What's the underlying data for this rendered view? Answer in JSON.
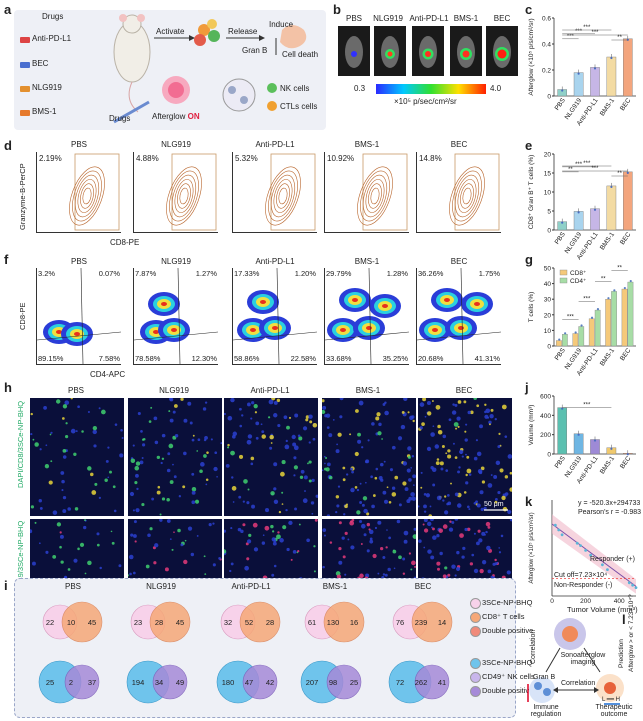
{
  "panels": {
    "a": {
      "label": "a",
      "drugs_title": "Drugs",
      "drug_list": [
        "Anti-PD-L1",
        "BEC",
        "NLG919",
        "BMS-1"
      ],
      "steps": [
        "Activate",
        "Release",
        "Induce"
      ],
      "gran_b": "Gran B",
      "cell_death": "Cell death",
      "drugs_label": "Drugs",
      "afterglow_on": "Afterglow",
      "on_word": "ON",
      "nk_label": "NK cells",
      "ctl_label": "CTLs cells"
    },
    "b": {
      "label": "b",
      "conditions": [
        "PBS",
        "NLG919",
        "Anti-PD-L1",
        "BMS-1",
        "BEC"
      ],
      "scale_min": "0.3",
      "scale_max": "4.0",
      "scale_unit": "×10⁵ p/sec/cm²/sr"
    },
    "d": {
      "label": "d",
      "ylabel": "Granzyme-B-PerCP",
      "xlabel": "CD8-PE",
      "conditions": [
        "PBS",
        "NLG919",
        "Anti-PD-L1",
        "BMS-1",
        "BEC"
      ],
      "percents": [
        "2.19%",
        "4.88%",
        "5.32%",
        "10.92%",
        "14.8%"
      ]
    },
    "f": {
      "label": "f",
      "ylabel": "CD8-PE",
      "xlabel": "CD4-APC",
      "conditions": [
        "PBS",
        "NLG919",
        "Anti-PD-L1",
        "BMS-1",
        "BEC"
      ],
      "quadrants": [
        {
          "tl": "3.2%",
          "tr": "0.07%",
          "bl": "89.15%",
          "br": "7.58%"
        },
        {
          "tl": "7.87%",
          "tr": "1.27%",
          "bl": "78.58%",
          "br": "12.30%"
        },
        {
          "tl": "17.33%",
          "tr": "1.20%",
          "bl": "58.86%",
          "br": "22.58%"
        },
        {
          "tl": "29.79%",
          "tr": "1.28%",
          "bl": "33.68%",
          "br": "35.25%"
        },
        {
          "tl": "36.26%",
          "tr": "1.75%",
          "bl": "20.68%",
          "br": "41.31%"
        }
      ]
    },
    "h": {
      "label": "h",
      "conditions": [
        "PBS",
        "NLG919",
        "Anti-PD-L1",
        "BMS-1",
        "BEC"
      ],
      "row1_label": "DAPI/CD8/3SCe-NP-BHQ",
      "row2_label": "DAPI/CD49/3SCe-NP-BHQ",
      "scale_bar": "50 μm"
    },
    "i": {
      "label": "i",
      "conditions": [
        "PBS",
        "NLG919",
        "Anti-PD-L1",
        "BMS-1",
        "BEC"
      ],
      "row1": [
        {
          "a": "22",
          "ab": "10",
          "b": "45"
        },
        {
          "a": "23",
          "ab": "28",
          "b": "45"
        },
        {
          "a": "32",
          "ab": "52",
          "b": "28"
        },
        {
          "a": "61",
          "ab": "130",
          "b": "16"
        },
        {
          "a": "76",
          "ab": "239",
          "b": "14"
        }
      ],
      "row2": [
        {
          "a": "25",
          "ab": "2",
          "b": "37"
        },
        {
          "a": "194",
          "ab": "34",
          "b": "49"
        },
        {
          "a": "180",
          "ab": "47",
          "b": "42"
        },
        {
          "a": "207",
          "ab": "98",
          "b": "25"
        },
        {
          "a": "72",
          "ab": "262",
          "b": "41"
        }
      ],
      "legend1": [
        "3SCe-NP-BHQ",
        "CD8⁺ T cells",
        "Double positive"
      ],
      "legend2": [
        "3SCe-NP-BHQ",
        "CD49⁺ NK cells",
        "Double positive"
      ]
    },
    "k": {
      "label": "k",
      "equation": "y = -520.3x+294733",
      "pearson": "Pearson's r = -0.983",
      "responder": "Responder (+)",
      "cutoff": "Cut off=7.23×10⁴",
      "nonresponder": "Non-Responder (-)",
      "xlabel": "Tumor Volume (mm³)",
      "ylabel": "Afterglow (×10⁵ p/s/cm²/sr)",
      "xticks": [
        "0",
        "200",
        "400"
      ]
    },
    "l": {
      "label": "l",
      "top": "Sonoafterglow imaging",
      "left": "Immune regulation",
      "right": "Therapeutic outcome",
      "gran_b": "Gran B",
      "corr1": "Correlation",
      "corr2": "Correlation",
      "prediction": "Afterglow > or < 7.23×10⁴?",
      "prediction_word": "Prediction",
      "lh": "L ━━ H"
    }
  },
  "chart_data": [
    {
      "id": "c",
      "type": "bar",
      "categories": [
        "PBS",
        "NLG919",
        "Anti-PD-L1",
        "BMS-1",
        "BEC"
      ],
      "values": [
        0.05,
        0.18,
        0.22,
        0.3,
        0.44
      ],
      "ylabel": "Afterglow (×10⁵ p/s/cm²/sr)",
      "ylim": [
        0,
        0.6
      ],
      "yticks": [
        0,
        0.2,
        0.4,
        0.6
      ],
      "significance": [
        "***",
        "***",
        "***",
        "***",
        "**"
      ],
      "colors": [
        "#8fd0c8",
        "#a9d4ee",
        "#c6b6e6",
        "#f3dba3",
        "#f3a57d"
      ]
    },
    {
      "id": "e",
      "type": "bar",
      "categories": [
        "PBS",
        "NLG919",
        "Anti-PD-L1",
        "BMS-1",
        "BEC"
      ],
      "values": [
        2.2,
        4.9,
        5.6,
        11.6,
        15.3
      ],
      "ylabel": "CD8⁺ Gran B⁺ T cells (%)",
      "ylim": [
        0,
        20
      ],
      "yticks": [
        0,
        5,
        10,
        15,
        20
      ],
      "significance": [
        "**",
        "***",
        "***",
        "***",
        "**"
      ],
      "colors": [
        "#8fd0c8",
        "#a9d4ee",
        "#c6b6e6",
        "#f3dba3",
        "#f3a57d"
      ]
    },
    {
      "id": "g",
      "type": "bar",
      "categories": [
        "PBS",
        "NLG919",
        "Anti-PD-L1",
        "BMS-1",
        "BEC"
      ],
      "series": [
        {
          "name": "CD8⁺",
          "values": [
            3.5,
            8.0,
            17.5,
            30.0,
            36.5
          ]
        },
        {
          "name": "CD4⁺",
          "values": [
            7.5,
            12.5,
            23.0,
            35.0,
            41.0
          ]
        }
      ],
      "ylabel": "T cells (%)",
      "ylim": [
        0,
        50
      ],
      "yticks": [
        0,
        10,
        20,
        30,
        40,
        50
      ],
      "significance": [
        "***",
        "***",
        "**",
        "**"
      ],
      "legend_position": "top-left",
      "colors": [
        "#f5c97a",
        "#a7dda6"
      ]
    },
    {
      "id": "j",
      "type": "bar",
      "categories": [
        "PBS",
        "NLG919",
        "Anti-PD-L1",
        "BMS-1",
        "BEC"
      ],
      "values": [
        480,
        210,
        150,
        65,
        8
      ],
      "ylabel": "Volume (mm³)",
      "ylim": [
        0,
        600
      ],
      "yticks": [
        0,
        200,
        400,
        600
      ],
      "significance": [
        "***"
      ],
      "colors": [
        "#5bc0b0",
        "#6fb6e3",
        "#9e8ad6",
        "#f0c96d",
        "#ee8a5e"
      ]
    },
    {
      "id": "k",
      "type": "scatter",
      "x": [
        20,
        40,
        60,
        150,
        170,
        200,
        230,
        300,
        330,
        460,
        480,
        500
      ],
      "y": [
        2.95,
        2.75,
        2.55,
        2.2,
        2.1,
        1.9,
        1.7,
        1.3,
        1.1,
        0.55,
        0.45,
        0.35
      ],
      "xlim": [
        0,
        500
      ],
      "ylim": [
        0,
        4
      ],
      "cutoff_y": 0.723
    }
  ]
}
